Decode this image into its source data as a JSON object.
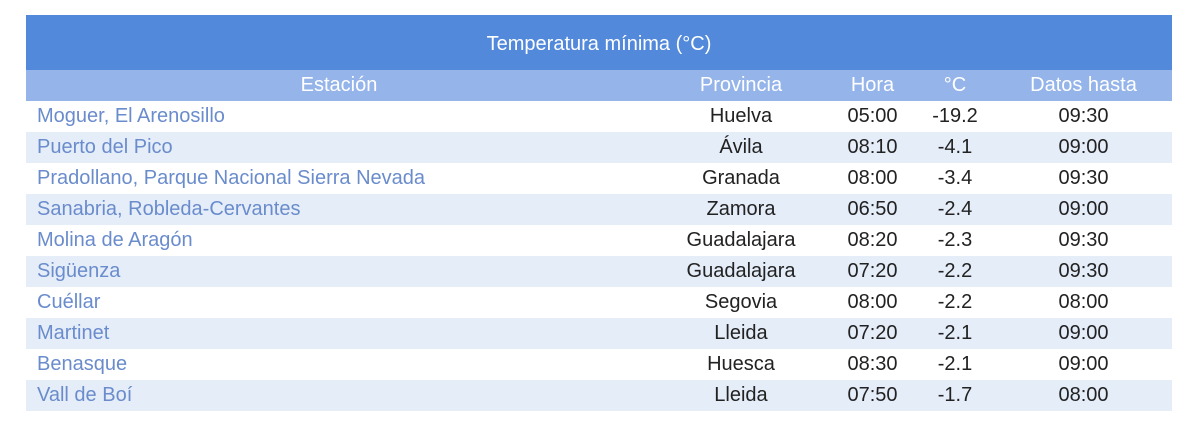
{
  "table": {
    "title": "Temperatura mínima (°C)",
    "columns": [
      "Estación",
      "Provincia",
      "Hora",
      "°C",
      "Datos hasta"
    ],
    "rows": [
      [
        "Moguer, El Arenosillo",
        "Huelva",
        "05:00",
        "-19.2",
        "09:30"
      ],
      [
        "Puerto del Pico",
        "Ávila",
        "08:10",
        "-4.1",
        "09:00"
      ],
      [
        "Pradollano, Parque Nacional Sierra Nevada",
        "Granada",
        "08:00",
        "-3.4",
        "09:30"
      ],
      [
        "Sanabria, Robleda-Cervantes",
        "Zamora",
        "06:50",
        "-2.4",
        "09:00"
      ],
      [
        "Molina de Aragón",
        "Guadalajara",
        "08:20",
        "-2.3",
        "09:30"
      ],
      [
        "Sigüenza",
        "Guadalajara",
        "07:20",
        "-2.2",
        "09:30"
      ],
      [
        "Cuéllar",
        "Segovia",
        "08:00",
        "-2.2",
        "08:00"
      ],
      [
        "Martinet",
        "Lleida",
        "07:20",
        "-2.1",
        "09:00"
      ],
      [
        "Benasque",
        "Huesca",
        "08:30",
        "-2.1",
        "09:00"
      ],
      [
        "Vall de Boí",
        "Lleida",
        "07:50",
        "-1.7",
        "08:00"
      ]
    ]
  }
}
